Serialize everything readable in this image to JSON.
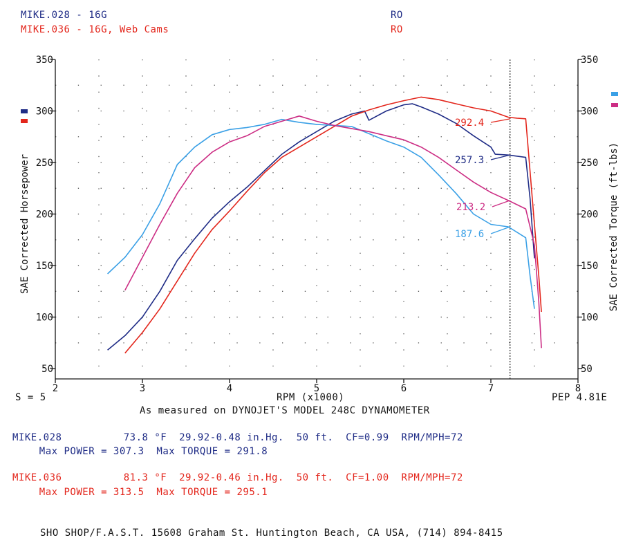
{
  "header": {
    "run1_name": "MIKE.028 - 16G",
    "run1_code": "RO",
    "run2_name": "MIKE.036 - 16G, Web Cams",
    "run2_code": "RO"
  },
  "colors": {
    "run1": "#1f2c86",
    "run2": "#e3261c",
    "run1_torque": "#3aa0e6",
    "run2_torque": "#cc2d84"
  },
  "chart_data": {
    "type": "line",
    "title": "",
    "xlabel": "RPM (x1000)",
    "ylabel": "SAE Corrected Horsepower",
    "y2label": "SAE Corrected Torque (ft-lbs)",
    "xlim": [
      2,
      8
    ],
    "ylim": [
      40,
      350
    ],
    "x_ticks": [
      "2",
      "3",
      "4",
      "5",
      "6",
      "7",
      "8"
    ],
    "y_ticks": [
      "50",
      "100",
      "150",
      "200",
      "250",
      "300",
      "350"
    ],
    "cursor_rpm": 7.22,
    "grid": "dotted",
    "smoothing": "S = 5",
    "pep": "PEP 4.81E",
    "series": [
      {
        "name": "MIKE.028",
        "kind": "power",
        "x": [
          2.6,
          2.8,
          3.0,
          3.2,
          3.4,
          3.6,
          3.8,
          4.0,
          4.2,
          4.4,
          4.6,
          4.8,
          5.0,
          5.2,
          5.4,
          5.55,
          5.6,
          5.8,
          6.0,
          6.1,
          6.2,
          6.4,
          6.6,
          6.8,
          7.0,
          7.05,
          7.2,
          7.4,
          7.45,
          7.5
        ],
        "y": [
          68,
          82,
          100,
          125,
          155,
          176,
          196,
          212,
          226,
          242,
          258,
          270,
          280,
          290,
          297,
          300,
          291,
          300,
          306,
          307,
          304,
          297,
          288,
          276,
          265,
          258,
          257.3,
          255,
          215,
          157
        ]
      },
      {
        "name": "MIKE.036",
        "kind": "power",
        "x": [
          2.8,
          3.0,
          3.2,
          3.4,
          3.6,
          3.8,
          4.0,
          4.2,
          4.4,
          4.6,
          4.8,
          5.0,
          5.2,
          5.4,
          5.6,
          5.8,
          6.0,
          6.2,
          6.4,
          6.6,
          6.8,
          7.0,
          7.2,
          7.3,
          7.4,
          7.5,
          7.55,
          7.58
        ],
        "y": [
          65,
          85,
          108,
          135,
          162,
          185,
          203,
          222,
          240,
          255,
          265,
          275,
          285,
          295,
          301,
          306,
          310,
          313.5,
          311,
          307,
          303,
          300,
          294,
          293,
          292.4,
          190,
          140,
          105
        ]
      },
      {
        "name": "MIKE.028",
        "kind": "torque",
        "x": [
          2.6,
          2.8,
          3.0,
          3.2,
          3.4,
          3.6,
          3.8,
          4.0,
          4.2,
          4.4,
          4.6,
          4.8,
          5.0,
          5.2,
          5.4,
          5.6,
          5.8,
          6.0,
          6.2,
          6.4,
          6.6,
          6.8,
          7.0,
          7.2,
          7.4,
          7.45,
          7.5
        ],
        "y": [
          142,
          158,
          180,
          210,
          248,
          265,
          277,
          282,
          284,
          287,
          291.8,
          289,
          287,
          286,
          285,
          278,
          271,
          265,
          255,
          238,
          220,
          200,
          190,
          187.6,
          177,
          140,
          108
        ]
      },
      {
        "name": "MIKE.036",
        "kind": "torque",
        "x": [
          2.8,
          3.0,
          3.2,
          3.4,
          3.6,
          3.8,
          4.0,
          4.2,
          4.4,
          4.6,
          4.8,
          5.0,
          5.2,
          5.4,
          5.6,
          5.8,
          6.0,
          6.2,
          6.4,
          6.6,
          6.8,
          7.0,
          7.2,
          7.4,
          7.5,
          7.55,
          7.58
        ],
        "y": [
          126,
          158,
          190,
          220,
          245,
          260,
          270,
          276,
          285,
          290,
          295.1,
          290,
          286,
          283,
          280,
          276,
          272,
          265,
          255,
          243,
          231,
          221,
          213.2,
          205,
          170,
          115,
          70
        ]
      }
    ],
    "annotations": [
      {
        "text": "292.4",
        "series": "MIKE.036 power"
      },
      {
        "text": "257.3",
        "series": "MIKE.028 power"
      },
      {
        "text": "213.2",
        "series": "MIKE.036 torque"
      },
      {
        "text": "187.6",
        "series": "MIKE.028 torque"
      }
    ]
  },
  "footer": {
    "smoothing": "S = 5",
    "pep": "PEP 4.81E",
    "measured": "As measured on DYNOJET'S MODEL 248C DYNAMOMETER",
    "run1_line1": "MIKE.028          73.8 °F  29.92-0.48 in.Hg.  50 ft.  CF=0.99  RPM/MPH=72",
    "run1_line2": "   Max POWER = 307.3  Max TORQUE = 291.8",
    "run2_line1": "MIKE.036          81.3 °F  29.92-0.46 in.Hg.  50 ft.  CF=1.00  RPM/MPH=72",
    "run2_line2": "   Max POWER = 313.5  Max TORQUE = 295.1",
    "shop": "SHO SHOP/F.A.S.T. 15608 Graham St. Huntington Beach, CA USA, (714) 894-8415"
  }
}
